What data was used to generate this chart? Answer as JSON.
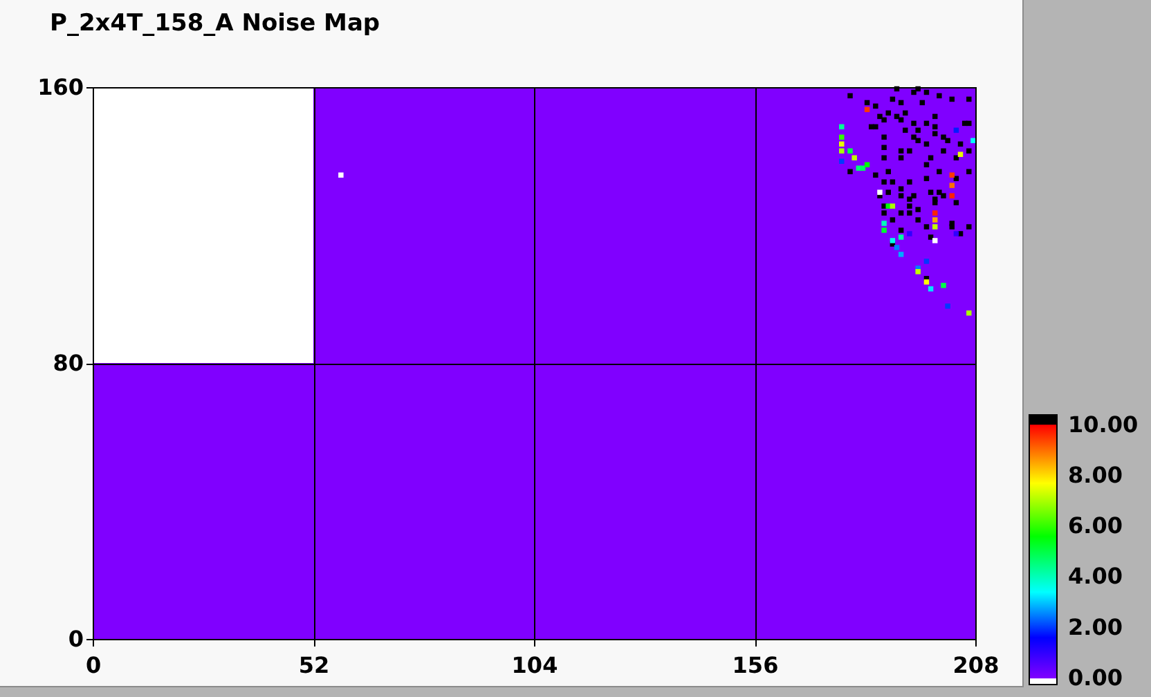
{
  "chart_data": {
    "type": "scatter",
    "title": "P_2x4T_158_A Noise Map",
    "xlim": [
      0,
      208
    ],
    "ylim": [
      0,
      160
    ],
    "xticks": [
      0,
      52,
      104,
      156,
      208
    ],
    "yticks": [
      0,
      80,
      160
    ],
    "grid": true,
    "marker": "square",
    "clim": [
      -0.25,
      10.4
    ],
    "cticks": [
      {
        "value": 0,
        "label": "0.00"
      },
      {
        "value": 2,
        "label": "2.00"
      },
      {
        "value": 4,
        "label": "4.00"
      },
      {
        "value": 6,
        "label": "6.00"
      },
      {
        "value": 8,
        "label": "8.00"
      },
      {
        "value": 10,
        "label": "10.00"
      }
    ],
    "bands": [
      {
        "axis": "x",
        "from": 52,
        "to": 208,
        "color": "#8000ff"
      },
      {
        "axis": "y",
        "from": 0,
        "to": 80,
        "color": "#8000ff"
      }
    ],
    "x": [
      189.5,
      193.5,
      194.5,
      196.5,
      199.5,
      178.5,
      182.5,
      188.5,
      184.5,
      190.5,
      191.5,
      195.5,
      202.5,
      206.5,
      205.5,
      206.5,
      185.5,
      186.5,
      184.5,
      183.5,
      187.5,
      189.5,
      190.5,
      193.5,
      194.5,
      196.5,
      198.5,
      198.5,
      198.5,
      191.5,
      193.5,
      194.5,
      200.5,
      201.5,
      204.5,
      206.5,
      203.5,
      186.5,
      186.5,
      186.5,
      190.5,
      190.5,
      192.5,
      196.5,
      196.5,
      197.5,
      200.5,
      178.5,
      199.5,
      199.5,
      203.5,
      206.5,
      196.5,
      197.5,
      190.5,
      187.5,
      192.5,
      193.5,
      187.5,
      184.5,
      186.5,
      188.5,
      185.5,
      190.5,
      198.5,
      200.5,
      203.5,
      186.5,
      192.5,
      192.5,
      194.5,
      198.5,
      186.5,
      190.5,
      192.5,
      188.5,
      194.5,
      190.5,
      196.5,
      197.5,
      202.5,
      202.5,
      204.5,
      206.5,
      188.5,
      196.5,
      182.5,
      203.5,
      207.5,
      204.5,
      176.5,
      176.5,
      176.5,
      176.5,
      176.5,
      178.5,
      179.5,
      180.5,
      181.5,
      182.5,
      185.5,
      202.5,
      202.5,
      202.5,
      187.5,
      188.5,
      198.5,
      198.5,
      186.5,
      186.5,
      190.5,
      192.5,
      198.5,
      198.5,
      203.5,
      188.5,
      189.5,
      190.5,
      194.5,
      194.5,
      196.5,
      196.5,
      197.5,
      200.5,
      201.5,
      206.5,
      58.5
    ],
    "values": [
      159.5,
      158.5,
      159.5,
      158.5,
      157.5,
      157.5,
      155.5,
      156.5,
      154.5,
      155.5,
      152.5,
      155.5,
      156.5,
      156.5,
      149.5,
      149.5,
      151.5,
      150.5,
      148.5,
      148.5,
      152.5,
      151.5,
      150.5,
      149.5,
      147.5,
      149.5,
      151.5,
      148.5,
      146.5,
      147.5,
      145.5,
      144.5,
      145.5,
      144.5,
      143.5,
      141.5,
      139.5,
      145.5,
      142.5,
      139.5,
      141.5,
      139.5,
      141.5,
      143.5,
      137.5,
      139.5,
      141.5,
      135.5,
      135.5,
      129.5,
      133.5,
      135.5,
      133.5,
      129.5,
      130.5,
      129.5,
      132.5,
      128.5,
      135.5,
      134.5,
      132.5,
      132.5,
      128.5,
      128.5,
      127.5,
      128.5,
      126.5,
      125.5,
      127.5,
      125.5,
      124.5,
      126.5,
      123.5,
      123.5,
      123.5,
      121.5,
      121.5,
      118.5,
      119.5,
      116.5,
      120.5,
      119.5,
      117.5,
      119.5,
      114.5,
      104.5,
      153.5,
      147.5,
      144.5,
      140.5,
      148.5,
      145.5,
      143.5,
      141.5,
      138.5,
      141.5,
      139.5,
      136.5,
      136.5,
      137.5,
      129.5,
      134.5,
      131.5,
      128.5,
      125.5,
      125.5,
      123.5,
      121.5,
      120.5,
      118.5,
      116.5,
      117.5,
      119.5,
      115.5,
      117.5,
      115.5,
      113.5,
      111.5,
      107.5,
      106.5,
      109.5,
      103.5,
      101.5,
      102.5,
      96.5,
      94.5,
      134.5
    ],
    "cvalues": [
      10.2,
      10.2,
      10.2,
      10.2,
      10.2,
      10.2,
      10.2,
      10.2,
      10.2,
      10.2,
      10.2,
      10.2,
      10.2,
      10.2,
      10.2,
      10.2,
      10.2,
      10.2,
      10.2,
      10.2,
      10.2,
      10.2,
      10.2,
      10.2,
      10.2,
      10.2,
      10.2,
      10.2,
      10.2,
      10.2,
      10.2,
      10.2,
      10.2,
      10.2,
      10.2,
      10.2,
      10.2,
      10.2,
      10.2,
      10.2,
      10.2,
      10.2,
      10.2,
      10.2,
      10.2,
      10.2,
      10.2,
      10.2,
      10.2,
      10.2,
      10.2,
      10.2,
      10.2,
      10.2,
      10.2,
      10.2,
      10.2,
      10.2,
      10.2,
      10.2,
      10.2,
      10.2,
      10.2,
      10.2,
      10.2,
      10.2,
      10.2,
      10.2,
      10.2,
      10.2,
      10.2,
      10.2,
      10.2,
      10.2,
      10.2,
      10.2,
      10.2,
      10.2,
      10.2,
      10.2,
      10.2,
      10.2,
      10.2,
      10.2,
      10.2,
      10.2,
      9.5,
      1.8,
      3.4,
      7.5,
      4.3,
      6.0,
      7.5,
      7.0,
      2.0,
      5.0,
      7.2,
      4.6,
      4.8,
      5.6,
      null,
      9.5,
      9.0,
      9.7,
      5.6,
      7.0,
      9.7,
      8.5,
      4.0,
      5.2,
      4.2,
      1.0,
      7.2,
      null,
      1.0,
      3.6,
      2.5,
      2.8,
      2.5,
      7.2,
      2.0,
      7.7,
      3.2,
      5.0,
      2.0,
      7.0,
      null
    ]
  }
}
